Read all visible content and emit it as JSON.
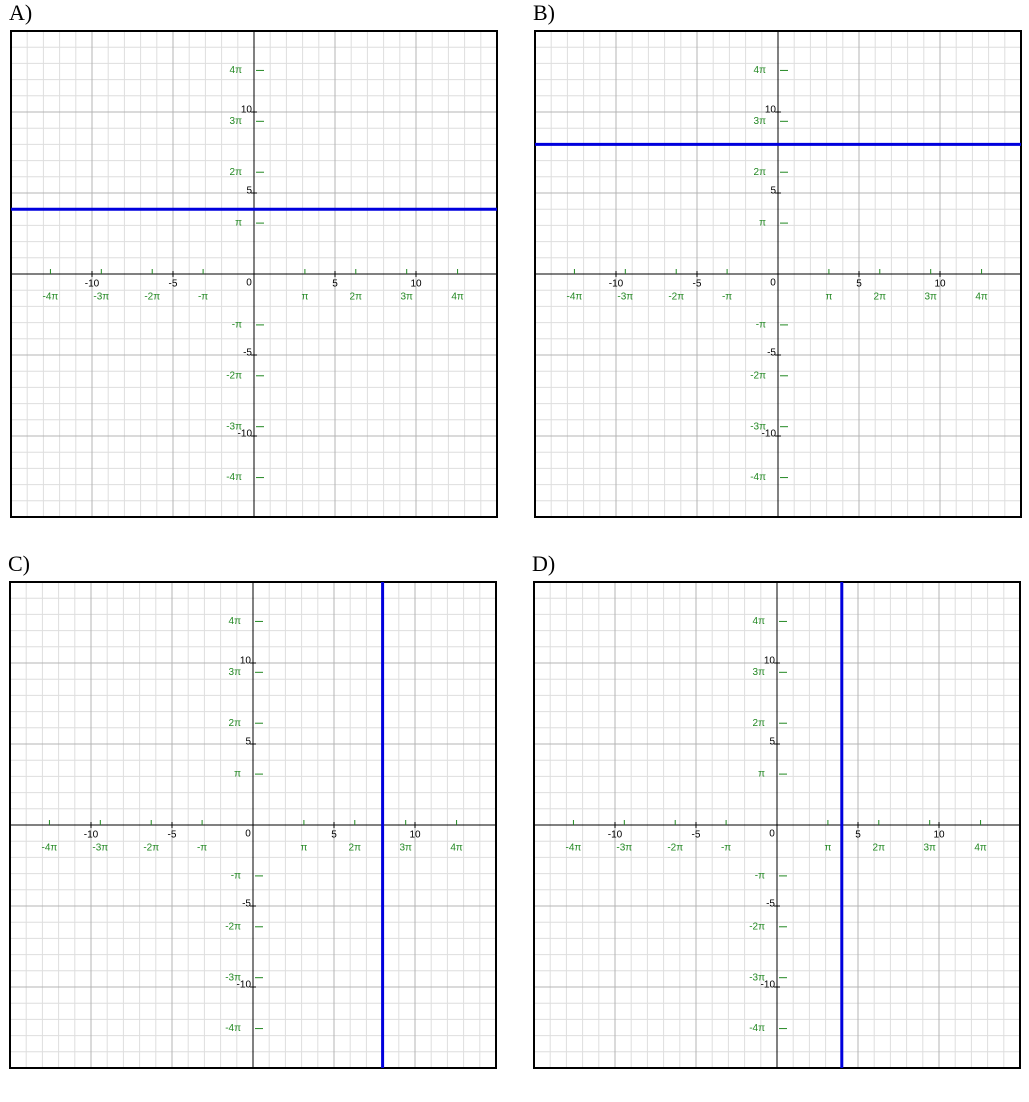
{
  "chart_data": [
    {
      "type": "line",
      "title": "A)",
      "x": [
        -15,
        15
      ],
      "values": [
        4,
        4
      ],
      "color": "#0000dd",
      "xlim": [
        -15,
        15
      ],
      "ylim": [
        -15,
        15
      ],
      "xticks": [
        -10,
        -5,
        5,
        10
      ],
      "yticks": [
        -10,
        -5,
        5,
        10
      ],
      "origin_label": "0",
      "xpiticks": [
        {
          "value": -12.566,
          "label": "-4π"
        },
        {
          "value": -9.425,
          "label": "-3π"
        },
        {
          "value": -6.283,
          "label": "-2π"
        },
        {
          "value": -3.142,
          "label": "-π"
        },
        {
          "value": 3.142,
          "label": "π"
        },
        {
          "value": 6.283,
          "label": "2π"
        },
        {
          "value": 9.425,
          "label": "3π"
        },
        {
          "value": 12.566,
          "label": "4π"
        }
      ],
      "ypiticks": [
        {
          "value": -12.566,
          "label": "-4π"
        },
        {
          "value": -9.425,
          "label": "-3π"
        },
        {
          "value": -6.283,
          "label": "-2π"
        },
        {
          "value": -3.142,
          "label": "-π"
        },
        {
          "value": 3.142,
          "label": "π"
        },
        {
          "value": 6.283,
          "label": "2π"
        },
        {
          "value": 9.425,
          "label": "3π"
        },
        {
          "value": 12.566,
          "label": "4π"
        }
      ],
      "grid": true
    },
    {
      "type": "line",
      "title": "B)",
      "x": [
        -15,
        15
      ],
      "values": [
        8,
        8
      ],
      "color": "#0000dd",
      "xlim": [
        -15,
        15
      ],
      "ylim": [
        -15,
        15
      ],
      "xticks": [
        -10,
        -5,
        5,
        10
      ],
      "yticks": [
        -10,
        -5,
        5,
        10
      ],
      "origin_label": "0",
      "xpiticks": [
        {
          "value": -12.566,
          "label": "-4π"
        },
        {
          "value": -9.425,
          "label": "-3π"
        },
        {
          "value": -6.283,
          "label": "-2π"
        },
        {
          "value": -3.142,
          "label": "-π"
        },
        {
          "value": 3.142,
          "label": "π"
        },
        {
          "value": 6.283,
          "label": "2π"
        },
        {
          "value": 9.425,
          "label": "3π"
        },
        {
          "value": 12.566,
          "label": "4π"
        }
      ],
      "ypiticks": [
        {
          "value": -12.566,
          "label": "-4π"
        },
        {
          "value": -9.425,
          "label": "-3π"
        },
        {
          "value": -6.283,
          "label": "-2π"
        },
        {
          "value": -3.142,
          "label": "-π"
        },
        {
          "value": 3.142,
          "label": "π"
        },
        {
          "value": 6.283,
          "label": "2π"
        },
        {
          "value": 9.425,
          "label": "3π"
        },
        {
          "value": 12.566,
          "label": "4π"
        }
      ],
      "grid": true
    },
    {
      "type": "line",
      "title": "C)",
      "x": [
        8,
        8
      ],
      "values": [
        -15,
        15
      ],
      "color": "#0000dd",
      "xlim": [
        -15,
        15
      ],
      "ylim": [
        -15,
        15
      ],
      "xticks": [
        -10,
        -5,
        5,
        10
      ],
      "yticks": [
        -10,
        -5,
        5,
        10
      ],
      "origin_label": "0",
      "xpiticks": [
        {
          "value": -12.566,
          "label": "-4π"
        },
        {
          "value": -9.425,
          "label": "-3π"
        },
        {
          "value": -6.283,
          "label": "-2π"
        },
        {
          "value": -3.142,
          "label": "-π"
        },
        {
          "value": 3.142,
          "label": "π"
        },
        {
          "value": 6.283,
          "label": "2π"
        },
        {
          "value": 9.425,
          "label": "3π"
        },
        {
          "value": 12.566,
          "label": "4π"
        }
      ],
      "ypiticks": [
        {
          "value": -12.566,
          "label": "-4π"
        },
        {
          "value": -9.425,
          "label": "-3π"
        },
        {
          "value": -6.283,
          "label": "-2π"
        },
        {
          "value": -3.142,
          "label": "-π"
        },
        {
          "value": 3.142,
          "label": "π"
        },
        {
          "value": 6.283,
          "label": "2π"
        },
        {
          "value": 9.425,
          "label": "3π"
        },
        {
          "value": 12.566,
          "label": "4π"
        }
      ],
      "grid": true
    },
    {
      "type": "line",
      "title": "D)",
      "x": [
        4,
        4
      ],
      "values": [
        -15,
        15
      ],
      "color": "#0000dd",
      "xlim": [
        -15,
        15
      ],
      "ylim": [
        -15,
        15
      ],
      "xticks": [
        -10,
        -5,
        5,
        10
      ],
      "yticks": [
        -10,
        -5,
        5,
        10
      ],
      "origin_label": "0",
      "xpiticks": [
        {
          "value": -12.566,
          "label": "-4π"
        },
        {
          "value": -9.425,
          "label": "-3π"
        },
        {
          "value": -6.283,
          "label": "-2π"
        },
        {
          "value": -3.142,
          "label": "-π"
        },
        {
          "value": 3.142,
          "label": "π"
        },
        {
          "value": 6.283,
          "label": "2π"
        },
        {
          "value": 9.425,
          "label": "3π"
        },
        {
          "value": 12.566,
          "label": "4π"
        }
      ],
      "ypiticks": [
        {
          "value": -12.566,
          "label": "-4π"
        },
        {
          "value": -9.425,
          "label": "-3π"
        },
        {
          "value": -6.283,
          "label": "-2π"
        },
        {
          "value": -3.142,
          "label": "-π"
        },
        {
          "value": 3.142,
          "label": "π"
        },
        {
          "value": 6.283,
          "label": "2π"
        },
        {
          "value": 9.425,
          "label": "3π"
        },
        {
          "value": 12.566,
          "label": "4π"
        }
      ],
      "grid": true
    }
  ]
}
